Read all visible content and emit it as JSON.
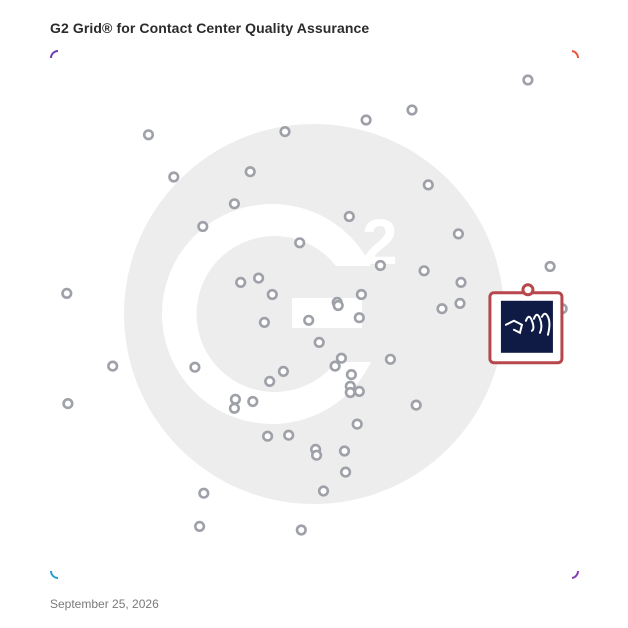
{
  "title": "G2 Grid® for Contact Center Quality Assurance",
  "date": "September 25, 2026",
  "colors": {
    "border_top_left": "#6b3fb5",
    "border_top_right": "#e8553a",
    "border_bottom_left": "#2a9fd6",
    "border_bottom_right": "#8a3fb0",
    "dot": "#9ea1a8",
    "highlight": "#b5474d",
    "highlight_logo_bg": "#0f1a45",
    "watermark": "#ededee"
  },
  "watermark_icon": "g2-logo-icon",
  "highlight_logo_icon": "product-logo-icon",
  "chart_data": {
    "type": "scatter",
    "title": "G2 Grid® for Contact Center Quality Assurance",
    "xlabel": "",
    "ylabel": "",
    "xlim": [
      0,
      100
    ],
    "ylim": [
      0,
      100
    ],
    "quadrant_dividers": {
      "x": 50,
      "y": 50
    },
    "grid": false,
    "points": [
      {
        "x": 90.5,
        "y": 94.5
      },
      {
        "x": 68.5,
        "y": 88.8
      },
      {
        "x": 59.8,
        "y": 86.9
      },
      {
        "x": 44.4,
        "y": 84.7
      },
      {
        "x": 18.5,
        "y": 84.1
      },
      {
        "x": 37.8,
        "y": 77.1
      },
      {
        "x": 23.3,
        "y": 76.1
      },
      {
        "x": 71.6,
        "y": 74.6
      },
      {
        "x": 34.8,
        "y": 71.0
      },
      {
        "x": 56.6,
        "y": 68.6
      },
      {
        "x": 28.8,
        "y": 66.7
      },
      {
        "x": 77.3,
        "y": 65.3
      },
      {
        "x": 47.2,
        "y": 63.6
      },
      {
        "x": 62.5,
        "y": 59.3
      },
      {
        "x": 94.7,
        "y": 59.1
      },
      {
        "x": 70.8,
        "y": 58.3
      },
      {
        "x": 39.4,
        "y": 56.9
      },
      {
        "x": 36.0,
        "y": 56.1
      },
      {
        "x": 77.8,
        "y": 56.1
      },
      {
        "x": 3.0,
        "y": 54.0
      },
      {
        "x": 42.0,
        "y": 53.8
      },
      {
        "x": 58.9,
        "y": 53.8
      },
      {
        "x": 54.3,
        "y": 52.3
      },
      {
        "x": 54.5,
        "y": 51.7
      },
      {
        "x": 77.6,
        "y": 52.1
      },
      {
        "x": 74.2,
        "y": 51.1
      },
      {
        "x": 97.0,
        "y": 51.1
      },
      {
        "x": 58.5,
        "y": 49.4
      },
      {
        "x": 48.9,
        "y": 48.9
      },
      {
        "x": 40.5,
        "y": 48.5
      },
      {
        "x": 50.9,
        "y": 44.7
      },
      {
        "x": 11.7,
        "y": 40.2
      },
      {
        "x": 27.3,
        "y": 40.0
      },
      {
        "x": 55.1,
        "y": 41.7
      },
      {
        "x": 64.4,
        "y": 41.5
      },
      {
        "x": 53.9,
        "y": 40.2
      },
      {
        "x": 44.1,
        "y": 39.2
      },
      {
        "x": 57.0,
        "y": 38.6
      },
      {
        "x": 41.5,
        "y": 37.3
      },
      {
        "x": 56.8,
        "y": 36.4
      },
      {
        "x": 56.8,
        "y": 35.2
      },
      {
        "x": 58.5,
        "y": 35.4
      },
      {
        "x": 35.0,
        "y": 33.9
      },
      {
        "x": 38.3,
        "y": 33.5
      },
      {
        "x": 34.8,
        "y": 32.2
      },
      {
        "x": 3.2,
        "y": 33.1
      },
      {
        "x": 69.3,
        "y": 32.8
      },
      {
        "x": 58.1,
        "y": 29.2
      },
      {
        "x": 45.1,
        "y": 27.1
      },
      {
        "x": 41.1,
        "y": 26.9
      },
      {
        "x": 50.2,
        "y": 24.4
      },
      {
        "x": 55.7,
        "y": 24.1
      },
      {
        "x": 50.4,
        "y": 23.3
      },
      {
        "x": 55.9,
        "y": 20.1
      },
      {
        "x": 51.7,
        "y": 16.5
      },
      {
        "x": 29.0,
        "y": 16.1
      },
      {
        "x": 28.2,
        "y": 9.8
      },
      {
        "x": 47.5,
        "y": 9.1
      }
    ],
    "highlight": {
      "x": 90.5,
      "y": 54.5
    }
  }
}
